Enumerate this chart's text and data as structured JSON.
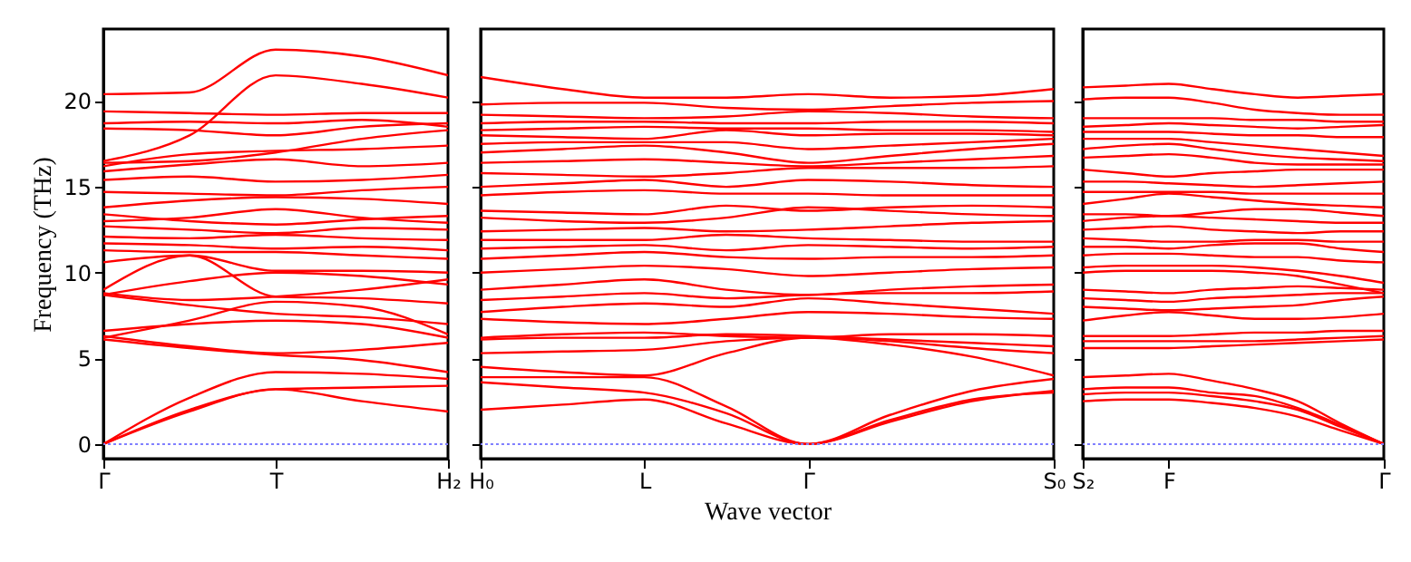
{
  "chart_data": [
    {
      "type": "line",
      "ylabel": "Frequency (THz)",
      "categories": [
        "Γ",
        null,
        "T",
        null,
        "H₂"
      ],
      "ylim": [
        -0.85,
        24.2
      ],
      "yticks": [
        0,
        5,
        10,
        15,
        20
      ],
      "ref_lines": [
        {
          "axis": "y",
          "value": 0,
          "color": "#8080ff",
          "line_style": "dotted"
        }
      ],
      "series": [
        {
          "color": "#ff0000",
          "values": [
            0,
            1.9,
            3.2,
            2.5,
            1.9
          ]
        },
        {
          "color": "#ff0000",
          "values": [
            0,
            2.0,
            3.2,
            3.3,
            3.4
          ]
        },
        {
          "color": "#ff0000",
          "values": [
            0,
            2.7,
            4.2,
            4.1,
            3.8
          ]
        },
        {
          "color": "#ff0000",
          "values": [
            6.1,
            5.6,
            5.2,
            4.9,
            4.2
          ]
        },
        {
          "color": "#ff0000",
          "values": [
            6.3,
            5.7,
            5.3,
            5.5,
            5.9
          ]
        },
        {
          "color": "#ff0000",
          "values": [
            6.6,
            7.0,
            7.2,
            7.0,
            6.2
          ]
        },
        {
          "color": "#ff0000",
          "values": [
            6.2,
            7.2,
            8.3,
            8.0,
            6.4
          ]
        },
        {
          "color": "#ff0000",
          "values": [
            8.7,
            8.1,
            7.6,
            7.4,
            7.0
          ]
        },
        {
          "color": "#ff0000",
          "values": [
            8.8,
            8.4,
            8.6,
            9.0,
            9.6
          ]
        },
        {
          "color": "#ff0000",
          "values": [
            8.7,
            9.5,
            10.0,
            9.8,
            9.3
          ]
        },
        {
          "color": "#ff0000",
          "values": [
            9.0,
            11.0,
            8.6,
            8.5,
            8.2
          ]
        },
        {
          "color": "#ff0000",
          "values": [
            10.6,
            11.0,
            10.1,
            10.1,
            10.0
          ]
        },
        {
          "color": "#ff0000",
          "values": [
            11.3,
            11.2,
            11.2,
            11.0,
            10.8
          ]
        },
        {
          "color": "#ff0000",
          "values": [
            11.7,
            11.6,
            11.4,
            11.5,
            11.3
          ]
        },
        {
          "color": "#ff0000",
          "values": [
            12.1,
            12.0,
            12.2,
            12.0,
            11.9
          ]
        },
        {
          "color": "#ff0000",
          "values": [
            12.7,
            12.5,
            12.3,
            12.6,
            12.5
          ]
        },
        {
          "color": "#ff0000",
          "values": [
            13.0,
            13.2,
            13.7,
            13.2,
            12.9
          ]
        },
        {
          "color": "#ff0000",
          "values": [
            13.4,
            13.0,
            12.8,
            13.1,
            13.3
          ]
        },
        {
          "color": "#ff0000",
          "values": [
            13.8,
            14.2,
            14.4,
            14.3,
            14.0
          ]
        },
        {
          "color": "#ff0000",
          "values": [
            14.7,
            14.6,
            14.5,
            14.8,
            15.0
          ]
        },
        {
          "color": "#ff0000",
          "values": [
            15.4,
            15.6,
            15.3,
            15.4,
            15.7
          ]
        },
        {
          "color": "#ff0000",
          "values": [
            15.9,
            16.3,
            16.6,
            16.2,
            16.4
          ]
        },
        {
          "color": "#ff0000",
          "values": [
            16.2,
            16.9,
            17.1,
            17.2,
            17.4
          ]
        },
        {
          "color": "#ff0000",
          "values": [
            16.4,
            16.5,
            17.0,
            17.8,
            18.3
          ]
        },
        {
          "color": "#ff0000",
          "values": [
            16.5,
            18.0,
            21.5,
            21.0,
            20.2
          ]
        },
        {
          "color": "#ff0000",
          "values": [
            18.4,
            18.3,
            18.0,
            18.5,
            18.7
          ]
        },
        {
          "color": "#ff0000",
          "values": [
            18.7,
            18.8,
            18.7,
            18.9,
            18.5
          ]
        },
        {
          "color": "#ff0000",
          "values": [
            19.4,
            19.3,
            19.2,
            19.3,
            19.3
          ]
        },
        {
          "color": "#ff0000",
          "values": [
            20.4,
            20.5,
            23.0,
            22.6,
            21.5
          ]
        }
      ]
    },
    {
      "type": "line",
      "xlabel": "Wave vector",
      "tick_labels": "x",
      "categories": [
        "H₀",
        null,
        "L",
        null,
        "Γ",
        null,
        null,
        "S₀"
      ],
      "ylim": [
        -0.85,
        24.2
      ],
      "yticks": [
        0,
        5,
        10,
        15,
        20
      ],
      "ref_lines": [
        {
          "axis": "y",
          "value": 0,
          "color": "#8080ff",
          "line_style": "dotted"
        }
      ],
      "series": [
        {
          "color": "#ff0000",
          "values": [
            2.0,
            2.3,
            2.6,
            1.2,
            0,
            1.3,
            2.5,
            3.1
          ]
        },
        {
          "color": "#ff0000",
          "values": [
            3.6,
            3.3,
            3.0,
            1.8,
            0,
            1.4,
            2.6,
            3.0
          ]
        },
        {
          "color": "#ff0000",
          "values": [
            3.9,
            3.9,
            3.9,
            2.2,
            0,
            1.7,
            3.1,
            3.8
          ]
        },
        {
          "color": "#ff0000",
          "values": [
            4.5,
            4.2,
            4.0,
            5.3,
            6.2,
            5.8,
            5.1,
            4.0
          ]
        },
        {
          "color": "#ff0000",
          "values": [
            5.3,
            5.4,
            5.5,
            6.0,
            6.2,
            6.0,
            5.6,
            5.3
          ]
        },
        {
          "color": "#ff0000",
          "values": [
            6.1,
            6.2,
            6.2,
            6.4,
            6.3,
            6.1,
            5.9,
            5.7
          ]
        },
        {
          "color": "#ff0000",
          "values": [
            6.2,
            6.4,
            6.5,
            6.3,
            6.2,
            6.4,
            6.4,
            6.3
          ]
        },
        {
          "color": "#ff0000",
          "values": [
            7.3,
            7.1,
            7.0,
            7.3,
            7.7,
            7.6,
            7.4,
            7.3
          ]
        },
        {
          "color": "#ff0000",
          "values": [
            7.7,
            8.0,
            8.2,
            8.0,
            8.5,
            8.2,
            7.9,
            7.6
          ]
        },
        {
          "color": "#ff0000",
          "values": [
            8.4,
            8.6,
            8.8,
            8.5,
            8.7,
            8.8,
            8.8,
            8.9
          ]
        },
        {
          "color": "#ff0000",
          "values": [
            9.0,
            9.3,
            9.6,
            9.0,
            8.7,
            9.0,
            9.2,
            9.3
          ]
        },
        {
          "color": "#ff0000",
          "values": [
            10.0,
            10.2,
            10.4,
            10.2,
            9.8,
            10.0,
            10.2,
            10.3
          ]
        },
        {
          "color": "#ff0000",
          "values": [
            10.8,
            11.0,
            11.2,
            10.9,
            10.8,
            10.9,
            10.9,
            11.0
          ]
        },
        {
          "color": "#ff0000",
          "values": [
            11.4,
            11.5,
            11.6,
            11.3,
            11.6,
            11.5,
            11.4,
            11.5
          ]
        },
        {
          "color": "#ff0000",
          "values": [
            11.9,
            11.9,
            11.9,
            12.2,
            12.0,
            11.9,
            11.8,
            11.8
          ]
        },
        {
          "color": "#ff0000",
          "values": [
            12.4,
            12.5,
            12.6,
            12.4,
            12.5,
            12.7,
            12.9,
            13.0
          ]
        },
        {
          "color": "#ff0000",
          "values": [
            13.2,
            13.0,
            12.9,
            13.2,
            13.8,
            13.6,
            13.4,
            13.3
          ]
        },
        {
          "color": "#ff0000",
          "values": [
            13.6,
            13.5,
            13.4,
            13.9,
            13.6,
            13.8,
            13.9,
            13.8
          ]
        },
        {
          "color": "#ff0000",
          "values": [
            14.5,
            14.7,
            14.8,
            14.6,
            14.6,
            14.5,
            14.5,
            14.5
          ]
        },
        {
          "color": "#ff0000",
          "values": [
            15.0,
            15.2,
            15.4,
            15.0,
            15.4,
            15.3,
            15.1,
            15.0
          ]
        },
        {
          "color": "#ff0000",
          "values": [
            15.8,
            15.7,
            15.6,
            15.8,
            16.1,
            16.1,
            16.1,
            16.2
          ]
        },
        {
          "color": "#ff0000",
          "values": [
            16.4,
            16.5,
            16.6,
            16.4,
            16.2,
            16.4,
            16.6,
            16.8
          ]
        },
        {
          "color": "#ff0000",
          "values": [
            17.0,
            17.2,
            17.4,
            17.0,
            16.4,
            16.8,
            17.2,
            17.5
          ]
        },
        {
          "color": "#ff0000",
          "values": [
            17.5,
            17.6,
            17.6,
            17.6,
            17.2,
            17.4,
            17.6,
            17.8
          ]
        },
        {
          "color": "#ff0000",
          "values": [
            18.0,
            17.9,
            17.8,
            18.3,
            18.0,
            18.1,
            18.1,
            18.0
          ]
        },
        {
          "color": "#ff0000",
          "values": [
            18.3,
            18.4,
            18.5,
            18.4,
            18.4,
            18.3,
            18.3,
            18.2
          ]
        },
        {
          "color": "#ff0000",
          "values": [
            18.7,
            18.8,
            18.8,
            18.7,
            18.7,
            18.8,
            18.8,
            18.7
          ]
        },
        {
          "color": "#ff0000",
          "values": [
            19.2,
            19.1,
            19.0,
            19.1,
            19.4,
            19.3,
            19.1,
            19.0
          ]
        },
        {
          "color": "#ff0000",
          "values": [
            19.8,
            19.9,
            19.9,
            19.6,
            19.5,
            19.7,
            19.9,
            20.0
          ]
        },
        {
          "color": "#ff0000",
          "values": [
            21.4,
            20.7,
            20.2,
            20.2,
            20.4,
            20.2,
            20.3,
            20.7
          ]
        }
      ]
    },
    {
      "type": "line",
      "tick_labels": "x",
      "categories": [
        "S₂",
        null,
        "F",
        null,
        null,
        null,
        null,
        "Γ"
      ],
      "ylim": [
        -0.85,
        24.2
      ],
      "yticks": [
        0,
        5,
        10,
        15,
        20
      ],
      "ref_lines": [
        {
          "axis": "y",
          "value": 0,
          "color": "#8080ff",
          "line_style": "dotted"
        }
      ],
      "series": [
        {
          "color": "#ff0000",
          "values": [
            2.5,
            2.6,
            2.6,
            2.4,
            2.1,
            1.6,
            0.8,
            0
          ]
        },
        {
          "color": "#ff0000",
          "values": [
            2.9,
            3.0,
            3.0,
            2.8,
            2.5,
            2.0,
            1.0,
            0
          ]
        },
        {
          "color": "#ff0000",
          "values": [
            3.2,
            3.3,
            3.3,
            3.0,
            2.8,
            2.1,
            1.1,
            0
          ]
        },
        {
          "color": "#ff0000",
          "values": [
            3.9,
            4.0,
            4.1,
            3.7,
            3.2,
            2.5,
            1.2,
            0
          ]
        },
        {
          "color": "#ff0000",
          "values": [
            5.6,
            5.6,
            5.6,
            5.7,
            5.8,
            5.9,
            6.0,
            6.1
          ]
        },
        {
          "color": "#ff0000",
          "values": [
            6.0,
            6.0,
            6.0,
            6.0,
            6.0,
            6.1,
            6.2,
            6.3
          ]
        },
        {
          "color": "#ff0000",
          "values": [
            6.3,
            6.3,
            6.3,
            6.4,
            6.5,
            6.5,
            6.6,
            6.6
          ]
        },
        {
          "color": "#ff0000",
          "values": [
            7.2,
            7.5,
            7.7,
            7.5,
            7.3,
            7.3,
            7.4,
            7.6
          ]
        },
        {
          "color": "#ff0000",
          "values": [
            8.0,
            7.9,
            7.8,
            7.9,
            8.0,
            8.1,
            8.4,
            8.6
          ]
        },
        {
          "color": "#ff0000",
          "values": [
            8.5,
            8.4,
            8.3,
            8.5,
            8.6,
            8.7,
            8.8,
            8.8
          ]
        },
        {
          "color": "#ff0000",
          "values": [
            9.0,
            8.9,
            8.8,
            9.0,
            9.1,
            9.2,
            9.1,
            9.0
          ]
        },
        {
          "color": "#ff0000",
          "values": [
            10.0,
            10.1,
            10.1,
            10.1,
            10.0,
            9.8,
            9.3,
            8.8
          ]
        },
        {
          "color": "#ff0000",
          "values": [
            10.3,
            10.4,
            10.4,
            10.4,
            10.3,
            10.1,
            9.8,
            9.4
          ]
        },
        {
          "color": "#ff0000",
          "values": [
            11.0,
            11.1,
            11.1,
            11.0,
            10.9,
            10.9,
            10.7,
            10.6
          ]
        },
        {
          "color": "#ff0000",
          "values": [
            11.5,
            11.5,
            11.4,
            11.6,
            11.7,
            11.7,
            11.4,
            11.2
          ]
        },
        {
          "color": "#ff0000",
          "values": [
            12.0,
            11.9,
            11.8,
            11.8,
            11.9,
            11.9,
            11.8,
            11.8
          ]
        },
        {
          "color": "#ff0000",
          "values": [
            12.5,
            12.6,
            12.7,
            12.5,
            12.4,
            12.3,
            12.4,
            12.4
          ]
        },
        {
          "color": "#ff0000",
          "values": [
            13.0,
            13.2,
            13.3,
            13.2,
            13.1,
            13.0,
            12.9,
            12.9
          ]
        },
        {
          "color": "#ff0000",
          "values": [
            13.4,
            13.4,
            13.3,
            13.5,
            13.7,
            13.7,
            13.5,
            13.3
          ]
        },
        {
          "color": "#ff0000",
          "values": [
            14.0,
            14.3,
            14.6,
            14.4,
            14.2,
            14.0,
            13.9,
            13.8
          ]
        },
        {
          "color": "#ff0000",
          "values": [
            14.7,
            14.7,
            14.7,
            14.7,
            14.6,
            14.6,
            14.6,
            14.6
          ]
        },
        {
          "color": "#ff0000",
          "values": [
            15.3,
            15.3,
            15.2,
            15.1,
            15.0,
            15.1,
            15.2,
            15.3
          ]
        },
        {
          "color": "#ff0000",
          "values": [
            16.0,
            15.8,
            15.6,
            15.8,
            15.9,
            16.0,
            16.0,
            16.0
          ]
        },
        {
          "color": "#ff0000",
          "values": [
            16.7,
            16.8,
            16.9,
            16.7,
            16.4,
            16.3,
            16.3,
            16.3
          ]
        },
        {
          "color": "#ff0000",
          "values": [
            17.2,
            17.4,
            17.5,
            17.2,
            16.9,
            16.7,
            16.6,
            16.5
          ]
        },
        {
          "color": "#ff0000",
          "values": [
            17.8,
            17.8,
            17.8,
            17.6,
            17.4,
            17.2,
            17.0,
            16.8
          ]
        },
        {
          "color": "#ff0000",
          "values": [
            18.2,
            18.2,
            18.2,
            18.1,
            18.0,
            18.0,
            17.9,
            17.9
          ]
        },
        {
          "color": "#ff0000",
          "values": [
            18.5,
            18.6,
            18.7,
            18.6,
            18.5,
            18.4,
            18.5,
            18.6
          ]
        },
        {
          "color": "#ff0000",
          "values": [
            19.0,
            19.0,
            19.0,
            19.0,
            18.9,
            18.9,
            18.8,
            18.8
          ]
        },
        {
          "color": "#ff0000",
          "values": [
            20.1,
            20.2,
            20.2,
            19.9,
            19.5,
            19.3,
            19.2,
            19.2
          ]
        },
        {
          "color": "#ff0000",
          "values": [
            20.8,
            20.9,
            21.0,
            20.7,
            20.4,
            20.2,
            20.3,
            20.4
          ]
        }
      ]
    }
  ]
}
